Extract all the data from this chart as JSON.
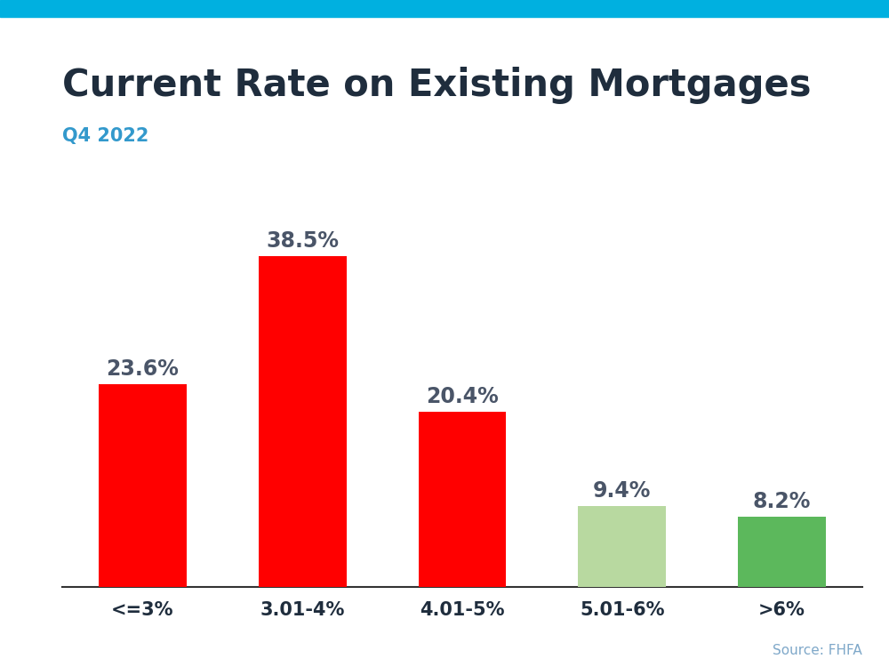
{
  "title": "Current Rate on Existing Mortgages",
  "subtitle": "Q4 2022",
  "source": "Source: FHFA",
  "categories": [
    "<=3%",
    "3.01-4%",
    "4.01-5%",
    "5.01-6%",
    ">6%"
  ],
  "values": [
    23.6,
    38.5,
    20.4,
    9.4,
    8.2
  ],
  "labels": [
    "23.6%",
    "38.5%",
    "20.4%",
    "9.4%",
    "8.2%"
  ],
  "bar_colors": [
    "#ff0000",
    "#ff0000",
    "#ff0000",
    "#b8d9a0",
    "#5cb85c"
  ],
  "title_color": "#1f2d3d",
  "subtitle_color": "#3399cc",
  "label_color": "#4a5568",
  "source_color": "#7fa8c9",
  "top_stripe_color": "#00b0e0",
  "background_color": "#ffffff",
  "ylim": [
    0,
    45
  ],
  "title_fontsize": 30,
  "subtitle_fontsize": 15,
  "label_fontsize": 17,
  "tick_fontsize": 15,
  "source_fontsize": 11
}
